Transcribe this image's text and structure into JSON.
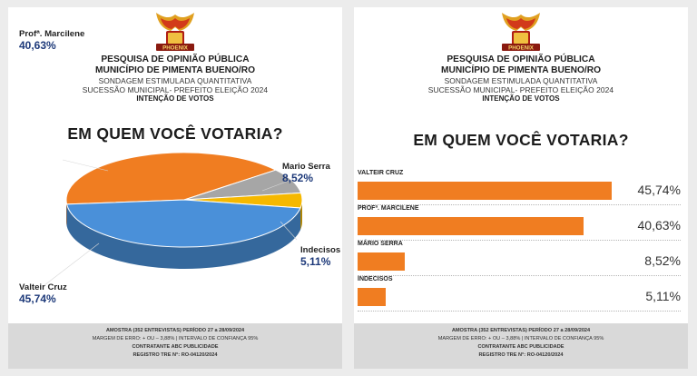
{
  "header": {
    "title1": "PESQUISA DE OPINIÃO PÚBLICA",
    "title2": "MUNICÍPIO DE PIMENTA BUENO/RO",
    "sub1": "SONDAGEM ESTIMULADA QUANTITATIVA",
    "sub2": "SUCESSÃO MUNICIPAL- PREFEITO ELEIÇÃO 2024",
    "sub3": "INTENÇÃO DE VOTOS",
    "logo_text": "PHOENIX"
  },
  "question": "EM QUEM VOCÊ VOTARIA?",
  "footer": {
    "line1": "AMOSTRA (352 ENTREVISTAS) PERÍODO 27 a 28/09/2024",
    "line2": "MARGEM DE ERRO: + OU – 3,88% | INTERVALO DE CONFIANÇA 95%",
    "line3": "CONTRATANTE ABC PUBLICIDADE",
    "line4": "REGISTRO TRE N°: RO-04120/2024"
  },
  "colors": {
    "orange": "#f07d21",
    "blue": "#4a90d9",
    "gray": "#a6a6a6",
    "yellow": "#f5b800",
    "navy": "#1e3a7a"
  },
  "chart_data": [
    {
      "type": "pie",
      "title": "EM QUEM VOCÊ VOTARIA?",
      "slices": [
        {
          "label": "Valteir Cruz",
          "value": 45.74,
          "value_label": "45,74%",
          "color": "#4a90d9"
        },
        {
          "label": "Profª. Marcilene",
          "value": 40.63,
          "value_label": "40,63%",
          "color": "#f07d21"
        },
        {
          "label": "Mario Serra",
          "value": 8.52,
          "value_label": "8,52%",
          "color": "#a6a6a6"
        },
        {
          "label": "Indecisos",
          "value": 5.11,
          "value_label": "5,11%",
          "color": "#f5b800"
        }
      ]
    },
    {
      "type": "bar",
      "orientation": "horizontal",
      "title": "EM QUEM VOCÊ VOTARIA?",
      "categories": [
        "VALTEIR CRUZ",
        "PROFª. MARCILENE",
        "MÁRIO SERRA",
        "INDECISOS"
      ],
      "values": [
        45.74,
        40.63,
        8.52,
        5.11
      ],
      "value_labels": [
        "45,74%",
        "40,63%",
        "8,52%",
        "5,11%"
      ],
      "color": "#f07d21"
    }
  ]
}
